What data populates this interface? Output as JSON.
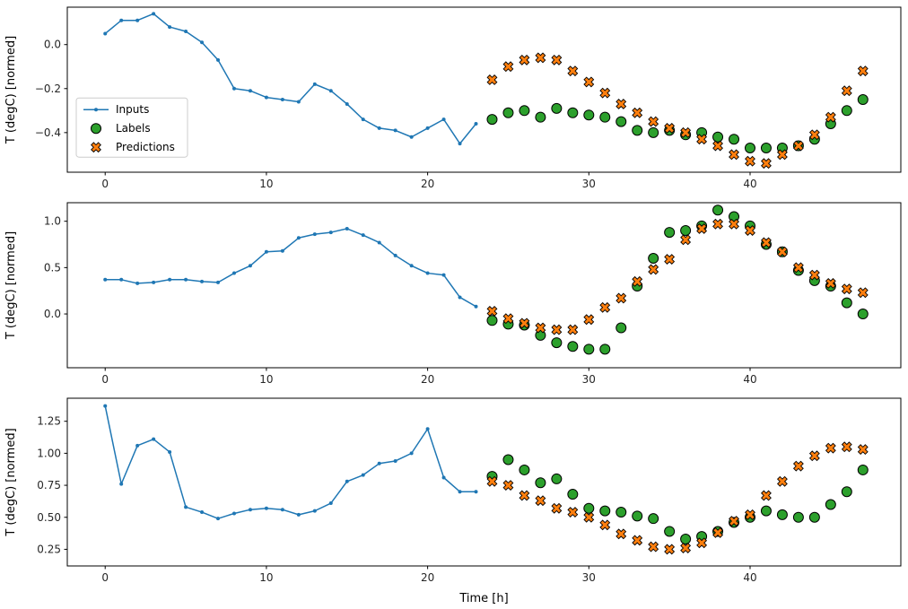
{
  "figure": {
    "background": "#ffffff",
    "axis_color": "#000000",
    "tick_label_color": "#262626"
  },
  "legend": {
    "items": [
      "Inputs",
      "Labels",
      "Predictions"
    ],
    "border_color": "#cccccc",
    "background": "#ffffff"
  },
  "chart_data": [
    {
      "type": "line",
      "panel": "top",
      "title": "",
      "xlabel": "",
      "ylabel": "T (degC) [normed]",
      "xlim": [
        -2.35,
        49.35
      ],
      "ylim": [
        -0.58,
        0.17
      ],
      "xticks": [
        0,
        10,
        20,
        30,
        40
      ],
      "xtick_labels": [
        "0",
        "10",
        "20",
        "30",
        "40"
      ],
      "yticks": [
        0.0,
        -0.2,
        -0.4
      ],
      "ytick_labels": [
        "0.0",
        "−0.2",
        "−0.4"
      ],
      "legend": true,
      "series": [
        {
          "name": "Inputs",
          "type": "line",
          "color": "#1f77b4",
          "x": [
            0,
            1,
            2,
            3,
            4,
            5,
            6,
            7,
            8,
            9,
            10,
            11,
            12,
            13,
            14,
            15,
            16,
            17,
            18,
            19,
            20,
            21,
            22,
            23
          ],
          "values": [
            0.05,
            0.11,
            0.11,
            0.14,
            0.08,
            0.06,
            0.01,
            -0.07,
            -0.2,
            -0.21,
            -0.24,
            -0.25,
            -0.26,
            -0.18,
            -0.21,
            -0.27,
            -0.34,
            -0.38,
            -0.39,
            -0.42,
            -0.38,
            -0.34,
            -0.45,
            -0.36
          ]
        },
        {
          "name": "Labels",
          "type": "scatter-circle",
          "color": "#2ca02c",
          "edge": "#000000",
          "x": [
            24,
            25,
            26,
            27,
            28,
            29,
            30,
            31,
            32,
            33,
            34,
            35,
            36,
            37,
            38,
            39,
            40,
            41,
            42,
            43,
            44,
            45,
            46,
            47
          ],
          "values": [
            -0.34,
            -0.31,
            -0.3,
            -0.33,
            -0.29,
            -0.31,
            -0.32,
            -0.33,
            -0.35,
            -0.39,
            -0.4,
            -0.39,
            -0.41,
            -0.4,
            -0.42,
            -0.43,
            -0.47,
            -0.47,
            -0.47,
            -0.46,
            -0.43,
            -0.36,
            -0.3,
            -0.25
          ]
        },
        {
          "name": "Predictions",
          "type": "scatter-x",
          "color": "#ff7f0e",
          "edge": "#000000",
          "x": [
            24,
            25,
            26,
            27,
            28,
            29,
            30,
            31,
            32,
            33,
            34,
            35,
            36,
            37,
            38,
            39,
            40,
            41,
            42,
            43,
            44,
            45,
            46,
            47
          ],
          "values": [
            -0.16,
            -0.1,
            -0.07,
            -0.06,
            -0.07,
            -0.12,
            -0.17,
            -0.22,
            -0.27,
            -0.31,
            -0.35,
            -0.38,
            -0.4,
            -0.43,
            -0.46,
            -0.5,
            -0.53,
            -0.54,
            -0.5,
            -0.46,
            -0.41,
            -0.33,
            -0.21,
            -0.12
          ]
        }
      ]
    },
    {
      "type": "line",
      "panel": "middle",
      "title": "",
      "xlabel": "",
      "ylabel": "T (degC) [normed]",
      "xlim": [
        -2.35,
        49.35
      ],
      "ylim": [
        -0.58,
        1.2
      ],
      "xticks": [
        0,
        10,
        20,
        30,
        40
      ],
      "xtick_labels": [
        "0",
        "10",
        "20",
        "30",
        "40"
      ],
      "yticks": [
        0.0,
        0.5,
        1.0
      ],
      "ytick_labels": [
        "0.0",
        "0.5",
        "1.0"
      ],
      "legend": false,
      "series": [
        {
          "name": "Inputs",
          "type": "line",
          "color": "#1f77b4",
          "x": [
            0,
            1,
            2,
            3,
            4,
            5,
            6,
            7,
            8,
            9,
            10,
            11,
            12,
            13,
            14,
            15,
            16,
            17,
            18,
            19,
            20,
            21,
            22,
            23
          ],
          "values": [
            0.37,
            0.37,
            0.33,
            0.34,
            0.37,
            0.37,
            0.35,
            0.34,
            0.44,
            0.52,
            0.67,
            0.68,
            0.82,
            0.86,
            0.88,
            0.92,
            0.85,
            0.77,
            0.63,
            0.52,
            0.44,
            0.42,
            0.18,
            0.08
          ]
        },
        {
          "name": "Labels",
          "type": "scatter-circle",
          "color": "#2ca02c",
          "edge": "#000000",
          "x": [
            24,
            25,
            26,
            27,
            28,
            29,
            30,
            31,
            32,
            33,
            34,
            35,
            36,
            37,
            38,
            39,
            40,
            41,
            42,
            43,
            44,
            45,
            46,
            47
          ],
          "values": [
            -0.07,
            -0.11,
            -0.12,
            -0.23,
            -0.31,
            -0.35,
            -0.38,
            -0.38,
            -0.15,
            0.3,
            0.6,
            0.88,
            0.9,
            0.95,
            1.12,
            1.05,
            0.95,
            0.75,
            0.67,
            0.47,
            0.36,
            0.3,
            0.12,
            0.0
          ]
        },
        {
          "name": "Predictions",
          "type": "scatter-x",
          "color": "#ff7f0e",
          "edge": "#000000",
          "x": [
            24,
            25,
            26,
            27,
            28,
            29,
            30,
            31,
            32,
            33,
            34,
            35,
            36,
            37,
            38,
            39,
            40,
            41,
            42,
            43,
            44,
            45,
            46,
            47
          ],
          "values": [
            0.03,
            -0.05,
            -0.1,
            -0.15,
            -0.17,
            -0.17,
            -0.06,
            0.07,
            0.17,
            0.35,
            0.48,
            0.59,
            0.8,
            0.92,
            0.97,
            0.97,
            0.9,
            0.77,
            0.67,
            0.5,
            0.42,
            0.33,
            0.27,
            0.23
          ]
        }
      ]
    },
    {
      "type": "line",
      "panel": "bottom",
      "title": "",
      "xlabel": "Time [h]",
      "ylabel": "T (degC) [normed]",
      "xlim": [
        -2.35,
        49.35
      ],
      "ylim": [
        0.12,
        1.43
      ],
      "xticks": [
        0,
        10,
        20,
        30,
        40
      ],
      "xtick_labels": [
        "0",
        "10",
        "20",
        "30",
        "40"
      ],
      "yticks": [
        0.25,
        0.5,
        0.75,
        1.0,
        1.25
      ],
      "ytick_labels": [
        "0.25",
        "0.50",
        "0.75",
        "1.00",
        "1.25"
      ],
      "legend": false,
      "series": [
        {
          "name": "Inputs",
          "type": "line",
          "color": "#1f77b4",
          "x": [
            0,
            1,
            2,
            3,
            4,
            5,
            6,
            7,
            8,
            9,
            10,
            11,
            12,
            13,
            14,
            15,
            16,
            17,
            18,
            19,
            20,
            21,
            22,
            23
          ],
          "values": [
            1.37,
            0.76,
            1.06,
            1.11,
            1.01,
            0.58,
            0.54,
            0.49,
            0.53,
            0.56,
            0.57,
            0.56,
            0.52,
            0.55,
            0.61,
            0.78,
            0.83,
            0.92,
            0.94,
            1.0,
            1.19,
            0.81,
            0.7,
            0.7
          ]
        },
        {
          "name": "Labels",
          "type": "scatter-circle",
          "color": "#2ca02c",
          "edge": "#000000",
          "x": [
            24,
            25,
            26,
            27,
            28,
            29,
            30,
            31,
            32,
            33,
            34,
            35,
            36,
            37,
            38,
            39,
            40,
            41,
            42,
            43,
            44,
            45,
            46,
            47
          ],
          "values": [
            0.82,
            0.95,
            0.87,
            0.77,
            0.8,
            0.68,
            0.57,
            0.55,
            0.54,
            0.51,
            0.49,
            0.39,
            0.33,
            0.35,
            0.39,
            0.46,
            0.5,
            0.55,
            0.52,
            0.5,
            0.5,
            0.6,
            0.7,
            0.87
          ]
        },
        {
          "name": "Predictions",
          "type": "scatter-x",
          "color": "#ff7f0e",
          "edge": "#000000",
          "x": [
            24,
            25,
            26,
            27,
            28,
            29,
            30,
            31,
            32,
            33,
            34,
            35,
            36,
            37,
            38,
            39,
            40,
            41,
            42,
            43,
            44,
            45,
            46,
            47
          ],
          "values": [
            0.78,
            0.75,
            0.67,
            0.63,
            0.57,
            0.54,
            0.5,
            0.44,
            0.37,
            0.32,
            0.27,
            0.25,
            0.26,
            0.3,
            0.38,
            0.47,
            0.52,
            0.67,
            0.78,
            0.9,
            0.98,
            1.04,
            1.05,
            1.03
          ]
        }
      ]
    }
  ]
}
